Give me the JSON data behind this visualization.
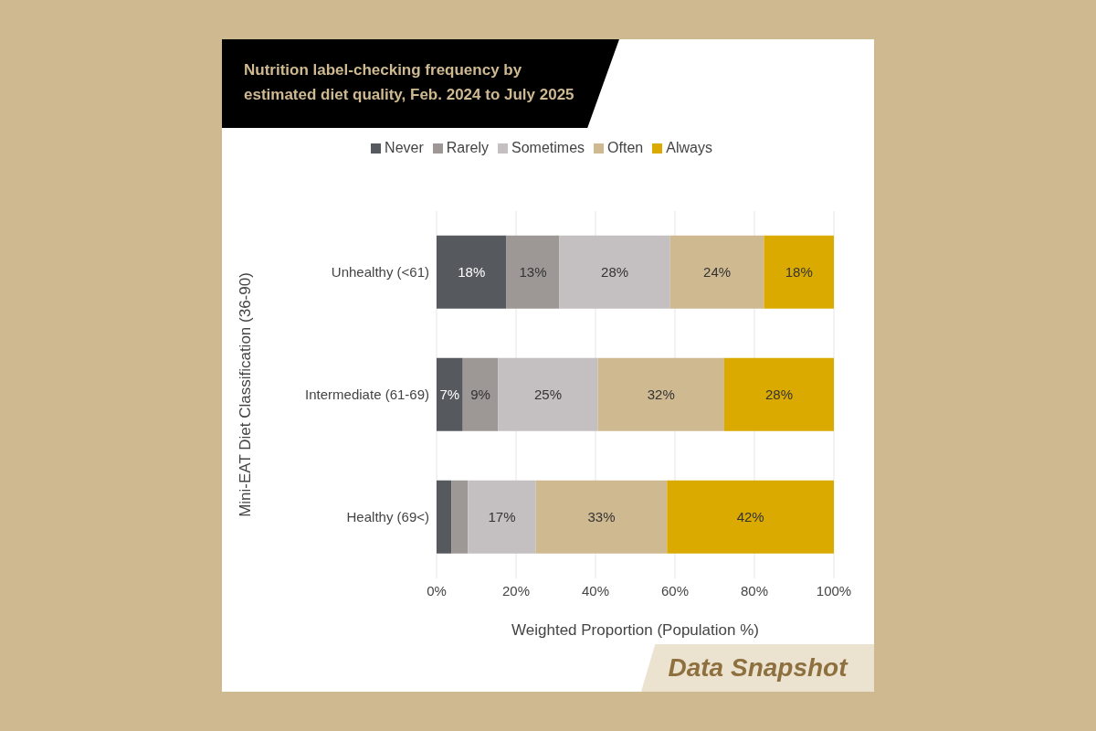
{
  "chart_data": {
    "type": "bar",
    "orientation": "horizontal",
    "stacked": true,
    "title": "Nutrition label-checking frequency by estimated diet quality, Feb. 2024 to July 2025",
    "categories": [
      "Unhealthy (<61)",
      "Intermediate (61-69)",
      "Healthy (69<)"
    ],
    "series": [
      {
        "name": "Never",
        "color": "#565a5f",
        "values": [
          17.6,
          6.6,
          3.7
        ],
        "value_labels": [
          "18%",
          "7%",
          null
        ]
      },
      {
        "name": "Rarely",
        "color": "#9d9795",
        "values": [
          13.3,
          8.9,
          4.2
        ],
        "value_labels": [
          "13%",
          "9%",
          null
        ]
      },
      {
        "name": "Sometimes",
        "color": "#c4bfc0",
        "values": [
          27.9,
          25.1,
          17.1
        ],
        "value_labels": [
          "28%",
          "25%",
          "17%"
        ]
      },
      {
        "name": "Often",
        "color": "#cfb991",
        "values": [
          23.6,
          31.8,
          33.0
        ],
        "value_labels": [
          "24%",
          "32%",
          "33%"
        ]
      },
      {
        "name": "Always",
        "color": "#daaa00",
        "values": [
          17.6,
          27.6,
          42.0
        ],
        "value_labels": [
          "18%",
          "28%",
          "42%"
        ]
      }
    ],
    "xlim": [
      0,
      100
    ],
    "xticks": [
      {
        "value": 0,
        "label": "0%"
      },
      {
        "value": 20,
        "label": "20%"
      },
      {
        "value": 40,
        "label": "40%"
      },
      {
        "value": 60,
        "label": "60%"
      },
      {
        "value": 80,
        "label": "80%"
      },
      {
        "value": 100,
        "label": "100%"
      }
    ],
    "xlabel": "Weighted Proportion (Population %)",
    "ylabel": "Mini-EAT Diet Classification (36-90)",
    "grid": "x",
    "legend": "top",
    "annotations": [
      "Data Snapshot"
    ]
  }
}
